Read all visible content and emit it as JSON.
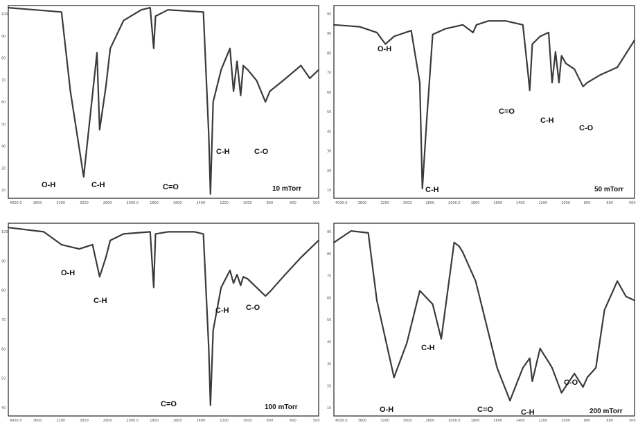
{
  "chart_data": [
    {
      "type": "line",
      "annotation": "10 mTorr",
      "x": [
        4000,
        3700,
        3400,
        3300,
        3150,
        3000,
        2970,
        2900,
        2850,
        2700,
        2500,
        2400,
        2360,
        2340,
        2200,
        1800,
        1740,
        1720,
        1690,
        1600,
        1500,
        1460,
        1420,
        1380,
        1350,
        1300,
        1200,
        1100,
        1050,
        900,
        700,
        600,
        500
      ],
      "y": [
        99,
        98,
        97,
        60,
        20,
        78,
        42,
        62,
        80,
        93,
        98,
        99,
        80,
        95,
        98,
        97,
        40,
        12,
        55,
        70,
        80,
        60,
        74,
        58,
        72,
        70,
        65,
        55,
        60,
        65,
        72,
        66,
        70
      ]
    },
    {
      "type": "line",
      "annotation": "50 mTorr",
      "x": [
        4000,
        3700,
        3500,
        3400,
        3300,
        3100,
        3000,
        2970,
        2920,
        2850,
        2700,
        2500,
        2380,
        2340,
        2200,
        2000,
        1800,
        1740,
        1720,
        1690,
        1600,
        1500,
        1460,
        1420,
        1380,
        1350,
        1300,
        1200,
        1100,
        1050,
        900,
        700,
        500
      ],
      "y": [
        90,
        89,
        86,
        80,
        84,
        87,
        60,
        5,
        40,
        85,
        88,
        90,
        86,
        90,
        92,
        92,
        90,
        65,
        56,
        80,
        84,
        86,
        60,
        76,
        60,
        74,
        70,
        67,
        58,
        60,
        64,
        68,
        82
      ]
    },
    {
      "type": "line",
      "annotation": "100 mTorr",
      "x": [
        4000,
        3600,
        3400,
        3200,
        3050,
        2970,
        2900,
        2850,
        2700,
        2400,
        2360,
        2340,
        2200,
        1900,
        1800,
        1740,
        1720,
        1690,
        1600,
        1500,
        1460,
        1420,
        1380,
        1350,
        1300,
        1200,
        1100,
        1050,
        900,
        700,
        500
      ],
      "y": [
        98,
        96,
        90,
        88,
        90,
        75,
        84,
        92,
        95,
        96,
        70,
        95,
        96,
        96,
        95,
        42,
        15,
        50,
        70,
        78,
        72,
        76,
        71,
        75,
        74,
        70,
        66,
        68,
        75,
        84,
        92
      ]
    },
    {
      "type": "line",
      "annotation": "200 mTorr",
      "x": [
        4000,
        3800,
        3600,
        3500,
        3300,
        3150,
        3000,
        2850,
        2750,
        2600,
        2540,
        2500,
        2350,
        2100,
        1950,
        1800,
        1720,
        1690,
        1600,
        1500,
        1460,
        1350,
        1200,
        1100,
        1050,
        950,
        900,
        850,
        700,
        600,
        500
      ],
      "y": [
        90,
        96,
        95,
        60,
        20,
        38,
        65,
        58,
        40,
        90,
        88,
        85,
        70,
        25,
        8,
        25,
        30,
        18,
        35,
        28,
        25,
        12,
        22,
        15,
        20,
        25,
        40,
        55,
        70,
        62,
        60
      ]
    }
  ],
  "band_labels": {
    "p10": {
      "oh": "O-H",
      "ch1": "C-H",
      "co2": "C=O",
      "ch2": "C-H",
      "c_o": "C-O"
    },
    "p50": {
      "oh": "O-H",
      "ch1": "C-H",
      "co2": "C=O",
      "ch2": "C-H",
      "c_o": "C-O"
    },
    "p100": {
      "oh": "O-H",
      "ch1": "C-H",
      "co2": "C=O",
      "ch2": "C-H",
      "c_o": "C-O"
    },
    "p200": {
      "oh": "O-H",
      "ch1": "C-H",
      "co2": "C=O",
      "ch2": "C-H",
      "c_o": "C-O"
    }
  },
  "x_ticks": {
    "p10": [
      "4000.0",
      "3600",
      "3200",
      "3000",
      "2800",
      "2000.0",
      "1800",
      "1600",
      "1400",
      "1200",
      "1000",
      "800",
      "600",
      "500"
    ],
    "p50": [
      "4000.0",
      "3600",
      "3200",
      "3000",
      "2800",
      "2000.0",
      "1800",
      "1600",
      "1400",
      "1200",
      "1000",
      "800",
      "600",
      "500"
    ],
    "p100": [
      "4000.0",
      "3600",
      "3200",
      "3000",
      "2800",
      "2000.0",
      "1800",
      "1600",
      "1400",
      "1200",
      "1000",
      "800",
      "600",
      "500"
    ],
    "p200": [
      "4000.0",
      "3600",
      "3200",
      "3000",
      "2800",
      "2000.0",
      "1800",
      "1600",
      "1400",
      "1200",
      "1000",
      "800",
      "600",
      "500"
    ]
  },
  "y_ticks": {
    "p10": [
      "100",
      "90",
      "80",
      "70",
      "60",
      "50",
      "40",
      "30",
      "20"
    ],
    "p50": [
      "95",
      "90",
      "80",
      "70",
      "60",
      "50",
      "40",
      "30",
      "20",
      "10"
    ],
    "p100": [
      "100",
      "90",
      "80",
      "70",
      "60",
      "50",
      "40"
    ],
    "p200": [
      "90",
      "80",
      "70",
      "60",
      "50",
      "40",
      "30",
      "20",
      "10"
    ]
  }
}
